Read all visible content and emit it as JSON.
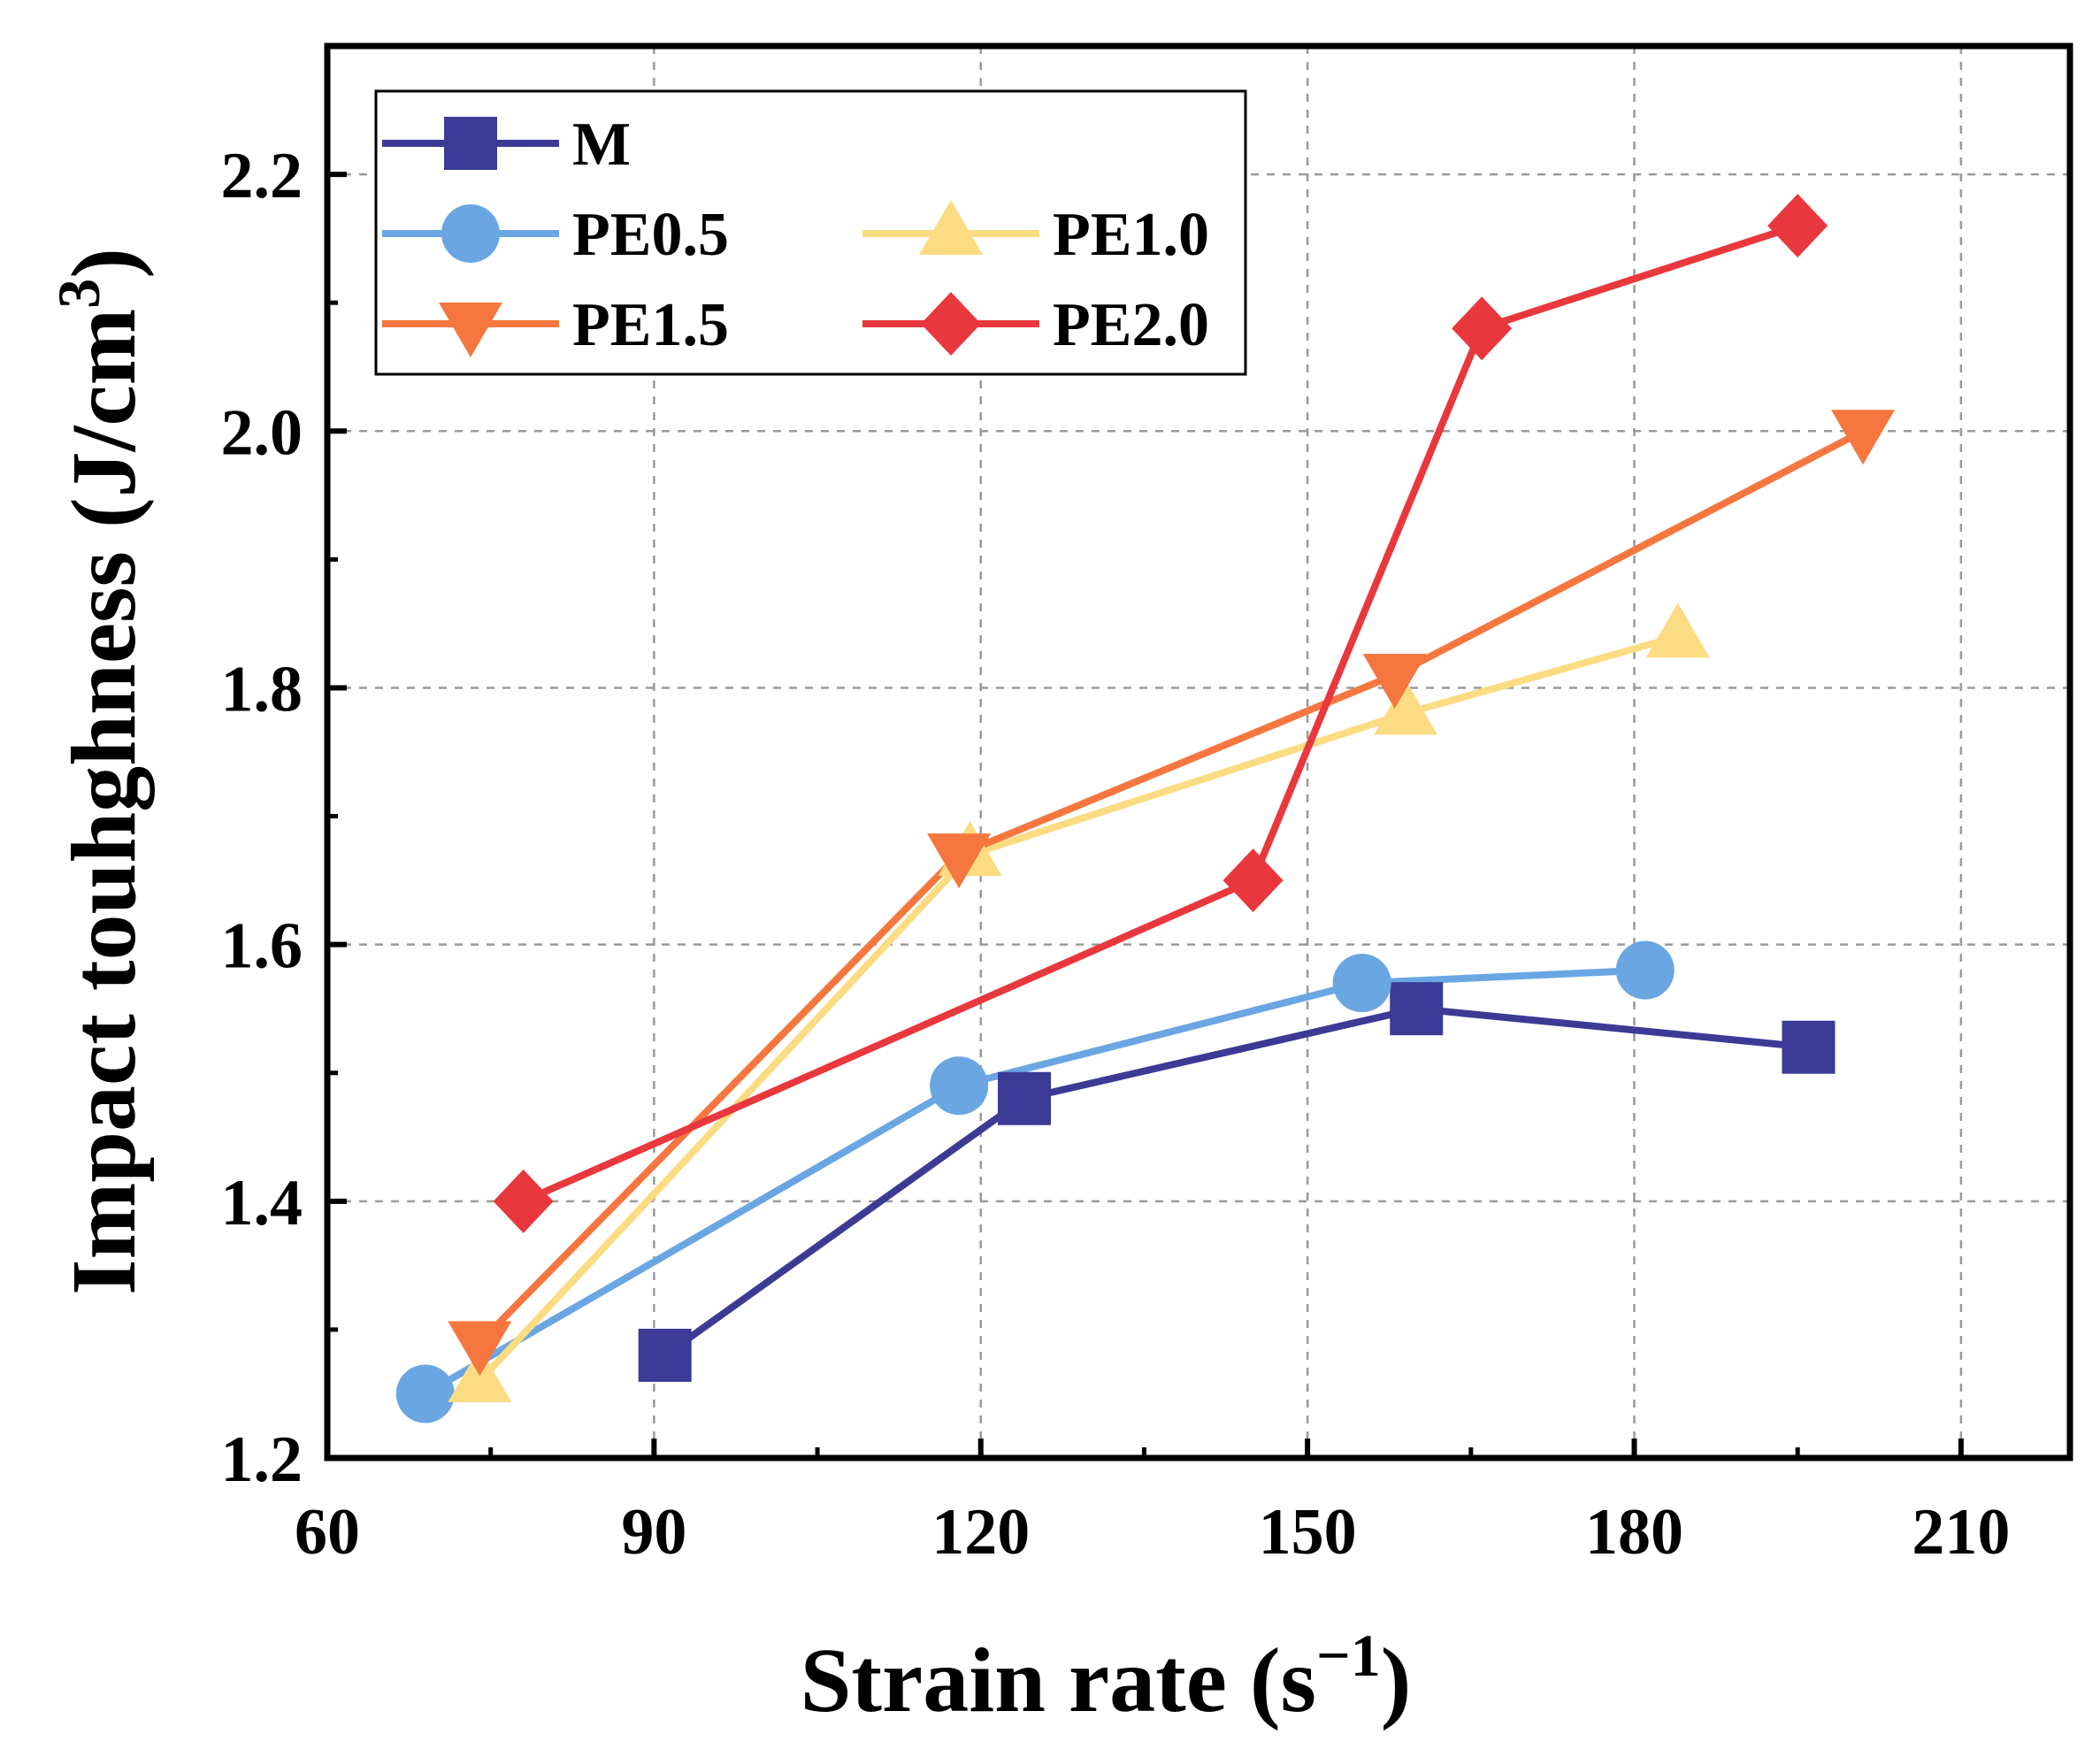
{
  "chart_data": {
    "type": "line",
    "title": "",
    "xlabel": "Strain rate (s",
    "xlabel_sup": "−1",
    "xlabel_close": ")",
    "ylabel": "Impact touhghness (J/cm",
    "ylabel_sup": "3",
    "ylabel_close": ")",
    "xlim": [
      60,
      220
    ],
    "ylim": [
      1.2,
      2.3
    ],
    "xticks": [
      60,
      90,
      120,
      150,
      180,
      210
    ],
    "xtick_labels": [
      "60",
      "90",
      "120",
      "150",
      "180",
      "210"
    ],
    "yticks": [
      1.2,
      1.4,
      1.6,
      1.8,
      2.0,
      2.2
    ],
    "ytick_labels": [
      "1.2",
      "1.4",
      "1.6",
      "1.8",
      "2.0",
      "2.2"
    ],
    "grid": true,
    "legend_position": "top-left",
    "series": [
      {
        "name": "M",
        "color": "#3b3b96",
        "marker": "square",
        "x": [
          91,
          124,
          160,
          196
        ],
        "y": [
          1.28,
          1.48,
          1.55,
          1.52
        ]
      },
      {
        "name": "PE0.5",
        "color": "#6aa6e2",
        "marker": "circle",
        "x": [
          69,
          118,
          155,
          181
        ],
        "y": [
          1.25,
          1.49,
          1.57,
          1.58
        ]
      },
      {
        "name": "PE1.0",
        "color": "#fcdc82",
        "marker": "triangle-up",
        "x": [
          74,
          119,
          159,
          184
        ],
        "y": [
          1.26,
          1.67,
          1.78,
          1.84
        ]
      },
      {
        "name": "PE1.5",
        "color": "#f5773f",
        "marker": "triangle-down",
        "x": [
          74,
          118,
          158,
          201
        ],
        "y": [
          1.29,
          1.67,
          1.81,
          2.0
        ]
      },
      {
        "name": "PE2.0",
        "color": "#e8383d",
        "marker": "diamond",
        "x": [
          78,
          145,
          166,
          195
        ],
        "y": [
          1.4,
          1.65,
          2.08,
          2.16
        ]
      }
    ]
  }
}
